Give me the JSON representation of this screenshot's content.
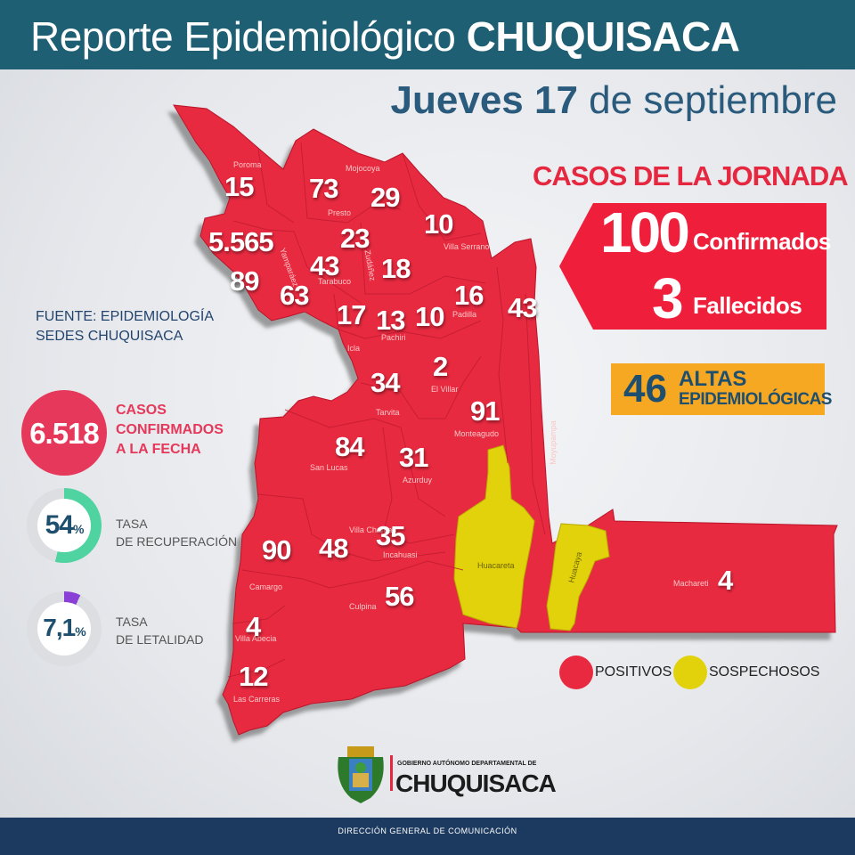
{
  "header": {
    "title_light": "Reporte Epidemiológico ",
    "title_bold": "CHUQUISACA",
    "date_bold": "Jueves 17",
    "date_light": " de septiembre"
  },
  "casos_jornada": {
    "title": "CASOS DE LA JORNADA",
    "confirmados_num": "100",
    "confirmados_label": "Confirmados",
    "fallecidos_num": "3",
    "fallecidos_label": "Fallecidos"
  },
  "altas": {
    "num": "46",
    "line1": "ALTAS",
    "line2": "EPIDEMIOLÓGICAS"
  },
  "fuente": {
    "line1": "FUENTE: EPIDEMIOLOGÍA",
    "line2": "SEDES CHUQUISACA"
  },
  "acumulado": {
    "num": "6.518",
    "line1": "CASOS",
    "line2": "CONFIRMADOS",
    "line3": "A LA FECHA"
  },
  "recuperacion": {
    "num": "54",
    "unit": "%",
    "line1": "TASA",
    "line2": "DE RECUPERACIÓN",
    "fraction": 0.54
  },
  "letalidad": {
    "num": "7,1",
    "unit": "%",
    "line1": "TASA",
    "line2": "DE LETALIDAD",
    "fraction": 0.071
  },
  "municipios": [
    {
      "name": "Poroma",
      "cases": "15"
    },
    {
      "name": "Mojocoya",
      "cases": "73"
    },
    {
      "name": "Presto",
      "cases": ""
    },
    {
      "name": "",
      "cases": "29"
    },
    {
      "name": "Villa Serrano",
      "cases": "10"
    },
    {
      "name": "",
      "cases": "5.565"
    },
    {
      "name": "",
      "cases": "23"
    },
    {
      "name": "Yamparáez",
      "cases": "89"
    },
    {
      "name": "Tarabuco",
      "cases": "43"
    },
    {
      "name": "Zudáñez",
      "cases": "18"
    },
    {
      "name": "",
      "cases": "63"
    },
    {
      "name": "Padilla",
      "cases": "16"
    },
    {
      "name": "Moyupampa",
      "cases": "43"
    },
    {
      "name": "Icla",
      "cases": "17"
    },
    {
      "name": "Pachiri",
      "cases": "13"
    },
    {
      "name": "",
      "cases": "10"
    },
    {
      "name": "El Villar",
      "cases": "2"
    },
    {
      "name": "Tarvita",
      "cases": "34"
    },
    {
      "name": "Monteagudo",
      "cases": "91"
    },
    {
      "name": "San Lucas",
      "cases": "84"
    },
    {
      "name": "Azurduy",
      "cases": "31"
    },
    {
      "name": "Villa Charcas",
      "cases": "48"
    },
    {
      "name": "Incahuasi",
      "cases": "35"
    },
    {
      "name": "Camargo",
      "cases": "90"
    },
    {
      "name": "Culpina",
      "cases": "56"
    },
    {
      "name": "Villa Abecia",
      "cases": "4"
    },
    {
      "name": "Las Carreras",
      "cases": "12"
    },
    {
      "name": "Huacareta",
      "cases": ""
    },
    {
      "name": "Huacaya",
      "cases": ""
    },
    {
      "name": "Machareti",
      "cases": "4"
    }
  ],
  "legend": {
    "positivos": "POSITIVOS",
    "sospechosos": "SOSPECHOSOS"
  },
  "colors": {
    "positivo": "#e8293f",
    "sospechoso": "#e2d20c",
    "header": "#1f5f74",
    "accent": "#e5273f"
  },
  "logo": {
    "small": "GOBIERNO AUTÓNOMO DEPARTAMENTAL DE",
    "big": "CHUQUISACA"
  },
  "footer": "DIRECCIÓN GENERAL DE COMUNICACIÓN"
}
